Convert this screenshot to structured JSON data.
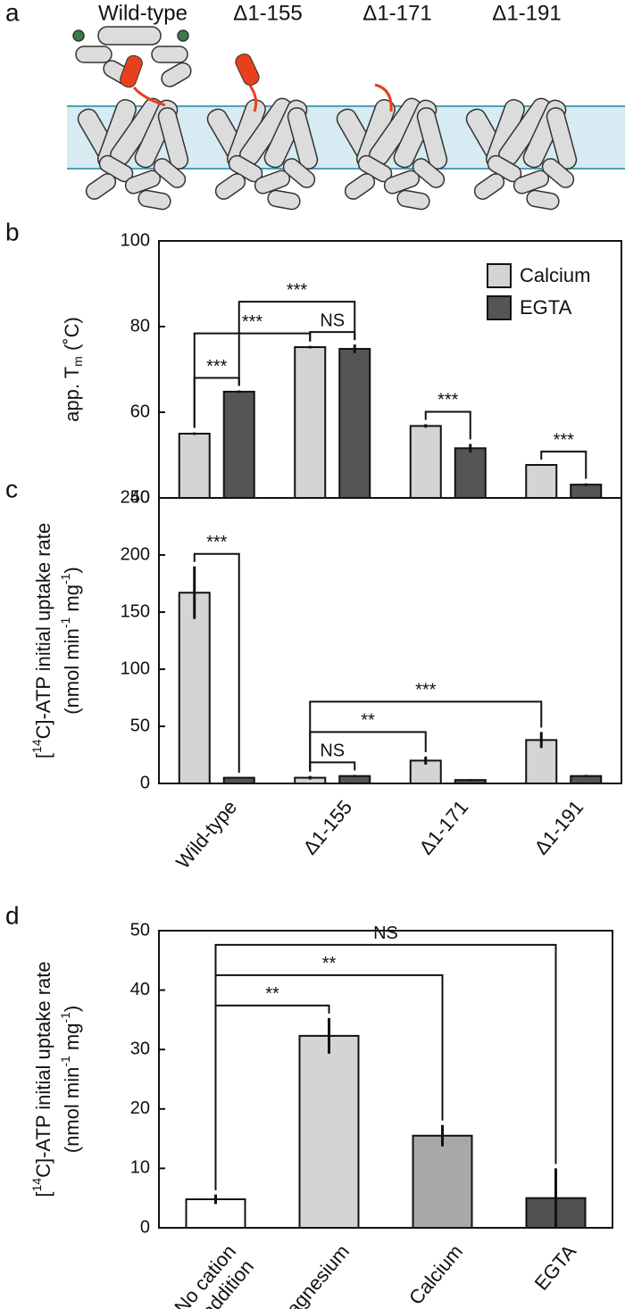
{
  "panel_labels": [
    "a",
    "b",
    "c",
    "d"
  ],
  "diagram": {
    "constructs": [
      "Wild-type",
      "Δ1-155",
      "Δ1-171",
      "Δ1-191"
    ]
  },
  "chart_data": [
    {
      "type": "bar",
      "y_label": [
        "app. T",
        "m",
        " (˚C)"
      ],
      "categories": [
        null,
        null,
        null,
        null
      ],
      "series": [
        {
          "name": "Calcium",
          "color": "#d4d4d4",
          "values": [
            55,
            75.2,
            56.8,
            47.7
          ],
          "errors": [
            0.3,
            0.3,
            0.4,
            0.2
          ]
        },
        {
          "name": "EGTA",
          "color": "#555555",
          "values": [
            64.8,
            74.8,
            51.6,
            43.1
          ],
          "errors": [
            0.3,
            1,
            1,
            0.3
          ]
        }
      ],
      "ylim": [
        40,
        100
      ],
      "yticks": [
        40,
        60,
        80,
        100
      ],
      "legend": "top-right",
      "annotations": [
        {
          "label": "***",
          "bars": [
            [
              0,
              0
            ],
            [
              1,
              0
            ]
          ]
        },
        {
          "label": "NS",
          "bars": [
            [
              0,
              1
            ],
            [
              1,
              1
            ]
          ]
        },
        {
          "label": "***",
          "bars": [
            [
              0,
              0
            ],
            [
              0,
              1
            ]
          ]
        },
        {
          "label": "***",
          "bars": [
            [
              1,
              0
            ],
            [
              1,
              1
            ]
          ]
        },
        {
          "label": "***",
          "bars": [
            [
              0,
              2
            ],
            [
              1,
              2
            ]
          ]
        },
        {
          "label": "***",
          "bars": [
            [
              0,
              3
            ],
            [
              1,
              3
            ]
          ]
        }
      ]
    },
    {
      "type": "bar",
      "y_label": [
        [
          "[",
          "14",
          "C]-ATP initial uptake rate"
        ],
        [
          "(nmol min",
          "-1",
          " mg",
          "-1",
          ")"
        ]
      ],
      "categories": [
        "Wild-type",
        "Δ1-155",
        "Δ1-171",
        "Δ1-191"
      ],
      "series": [
        {
          "color": "#d4d4d4",
          "values": [
            167,
            5,
            20,
            38
          ],
          "errors": [
            23,
            1.5,
            3.5,
            7
          ]
        },
        {
          "color": "#555555",
          "values": [
            5,
            6.5,
            3,
            6.5
          ],
          "errors": [
            0.5,
            1,
            0.8,
            1
          ]
        }
      ],
      "ylim": [
        0,
        250
      ],
      "yticks": [
        0,
        50,
        100,
        150,
        200,
        250
      ],
      "annotations": [
        {
          "label": "***",
          "bars": [
            [
              0,
              0
            ],
            [
              1,
              0
            ]
          ]
        },
        {
          "label": "NS",
          "bars": [
            [
              0,
              1
            ],
            [
              1,
              1
            ]
          ]
        },
        {
          "label": "**",
          "bars": [
            [
              0,
              1
            ],
            [
              0,
              2
            ]
          ]
        },
        {
          "label": "***",
          "bars": [
            [
              0,
              1
            ],
            [
              0,
              3
            ]
          ]
        }
      ]
    },
    {
      "type": "bar",
      "y_label": [
        [
          "[",
          "14",
          "C]-ATP initial uptake rate"
        ],
        [
          "(nmol min",
          "-1",
          " mg",
          "-1",
          ")"
        ]
      ],
      "categories": [
        "No cation addition",
        "Magnesium",
        "Calcium",
        "EGTA"
      ],
      "values": [
        4.8,
        32.3,
        15.5,
        5
      ],
      "errors": [
        0.8,
        3,
        1.8,
        5
      ],
      "colors": [
        "#ffffff",
        "#d4d4d4",
        "#a8a8a8",
        "#505050"
      ],
      "ylim": [
        0,
        50
      ],
      "yticks": [
        0,
        10,
        20,
        30,
        40,
        50
      ],
      "annotations": [
        {
          "label": "**",
          "bars": [
            0,
            1
          ]
        },
        {
          "label": "**",
          "bars": [
            0,
            2
          ]
        },
        {
          "label": "NS",
          "bars": [
            0,
            3
          ]
        }
      ]
    }
  ]
}
